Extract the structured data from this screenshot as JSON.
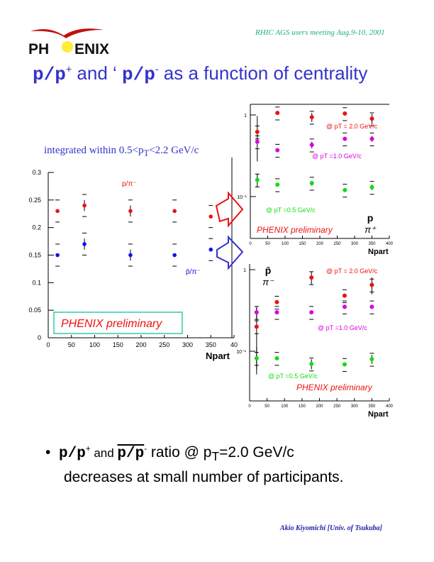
{
  "header": {
    "logo_text": "PHENIX",
    "meeting": "RHIC AGS  users meeting   Aug.9-10, 2001"
  },
  "title": {
    "part1": "p/p",
    "sup1": "+",
    "and": " and ",
    "quote": "‘ ",
    "part2": "p/p",
    "sup2": "-",
    "rest": "  as a function of centrality"
  },
  "integrated_note": {
    "text1": "integrated within  0.5<p",
    "sub": "T",
    "text2": "<2.2 GeV/c"
  },
  "colors": {
    "red": "#ee1111",
    "blue": "#1111ee",
    "magenta": "#dd00dd",
    "green": "#11dd11",
    "title": "#3333cc"
  },
  "arrows": [
    {
      "name": "red-arrow-icon",
      "color": "#ee1111"
    },
    {
      "name": "blue-arrow-icon",
      "color": "#3333cc"
    }
  ],
  "bullet": {
    "symbol": "•",
    "p1": "p/p",
    "s1": "+",
    "and": " and  ",
    "p2": "p/p",
    "s2": "-",
    "rest": "  ratio @ p",
    "sub": "T",
    "rest2": "=2.0 GeV/c",
    "line2": "decreases at small number of participants."
  },
  "footer": {
    "author": "Akio Kiyomichi [Univ. of Tsukuba]"
  },
  "chart_data": [
    {
      "type": "scatter",
      "xlabel": "Npart",
      "xlim": [
        0,
        400
      ],
      "ylim": [
        0,
        0.3
      ],
      "log": false,
      "xticks": [
        "0",
        "50",
        "100",
        "150",
        "200",
        "250",
        "300",
        "350",
        "40"
      ],
      "yticks": [
        "0",
        "0.05",
        "0.1",
        "0.15",
        "0.2",
        "0.25",
        "0.3"
      ],
      "watermark": "PHENIX  preliminary",
      "series": [
        {
          "name": "p/π⁻",
          "color": "#ee1111",
          "x": [
            20,
            78,
            177,
            272,
            350
          ],
          "y": [
            0.23,
            0.24,
            0.23,
            0.23,
            0.22
          ],
          "err": [
            0,
            0.01,
            0.01,
            0,
            0
          ]
        },
        {
          "name": "p̄/π⁻",
          "color": "#1111ee",
          "x": [
            20,
            78,
            177,
            272,
            350
          ],
          "y": [
            0.15,
            0.17,
            0.15,
            0.15,
            0.16
          ],
          "err": [
            0,
            0.01,
            0.01,
            0,
            0
          ]
        }
      ]
    },
    {
      "type": "scatter",
      "xlabel": "Npart",
      "xlim": [
        0,
        400
      ],
      "ylim": [
        0.055,
        1.35
      ],
      "log": true,
      "xticks": [
        "0",
        "50",
        "100",
        "150",
        "200",
        "250",
        "300",
        "350",
        "400"
      ],
      "yticks": [
        "10⁻¹",
        "1"
      ],
      "watermark": "PHENIX  preliminary",
      "ratio_label": {
        "num": "p",
        "den": "π⁺"
      },
      "series": [
        {
          "name": "@ pT = 2.0 GeV/c",
          "color": "#ee1111",
          "x": [
            20,
            78,
            177,
            272,
            350
          ],
          "y": [
            0.62,
            1.06,
            0.94,
            1.04,
            0.9
          ],
          "err": [
            0.35,
            0,
            0.12,
            0,
            0.13
          ]
        },
        {
          "name": "@ pT =1.0 GeV/c",
          "color": "#dd00dd",
          "x": [
            20,
            78,
            177,
            272,
            350
          ],
          "y": [
            0.47,
            0.37,
            0.43,
            0.51,
            0.51
          ],
          "err": [
            0,
            0,
            0.04,
            0.03,
            0.04
          ]
        },
        {
          "name": "@ pT =0.5 GeV/c",
          "color": "#11dd11",
          "x": [
            20,
            78,
            177,
            272,
            350
          ],
          "y": [
            0.16,
            0.14,
            0.146,
            0.12,
            0.13
          ],
          "err": [
            0.03,
            0,
            0.01,
            0,
            0.01
          ]
        }
      ]
    },
    {
      "type": "scatter",
      "xlabel": "Npart",
      "xlim": [
        0,
        400
      ],
      "ylim": [
        0.05,
        1.1
      ],
      "log": true,
      "xticks": [
        "0",
        "50",
        "100",
        "150",
        "200",
        "250",
        "300",
        "350",
        "400"
      ],
      "yticks": [
        "10⁻¹",
        "1"
      ],
      "watermark": "PHENIX  preliminary",
      "ratio_label": {
        "num": "p̄",
        "den": "π⁻"
      },
      "series": [
        {
          "name": "@ pT = 2.0 GeV/c",
          "color": "#ee1111",
          "x": [
            20,
            78,
            177,
            272,
            350
          ],
          "y": [
            0.2,
            0.4,
            0.8,
            0.48,
            0.65
          ],
          "err": [
            0.14,
            0,
            0.15,
            0,
            0.15
          ]
        },
        {
          "name": "@ pT =1.0 GeV/c",
          "color": "#dd00dd",
          "x": [
            20,
            78,
            177,
            272,
            350
          ],
          "y": [
            0.3,
            0.3,
            0.3,
            0.35,
            0.35
          ],
          "err": [
            0.05,
            0,
            0,
            0.02,
            0.02
          ]
        },
        {
          "name": "@ pT =0.5 GeV/c",
          "color": "#11dd11",
          "x": [
            20,
            78,
            177,
            272,
            350
          ],
          "y": [
            0.082,
            0.082,
            0.07,
            0.069,
            0.08
          ],
          "err": [
            0.03,
            0,
            0.01,
            0,
            0.01
          ]
        }
      ]
    }
  ]
}
